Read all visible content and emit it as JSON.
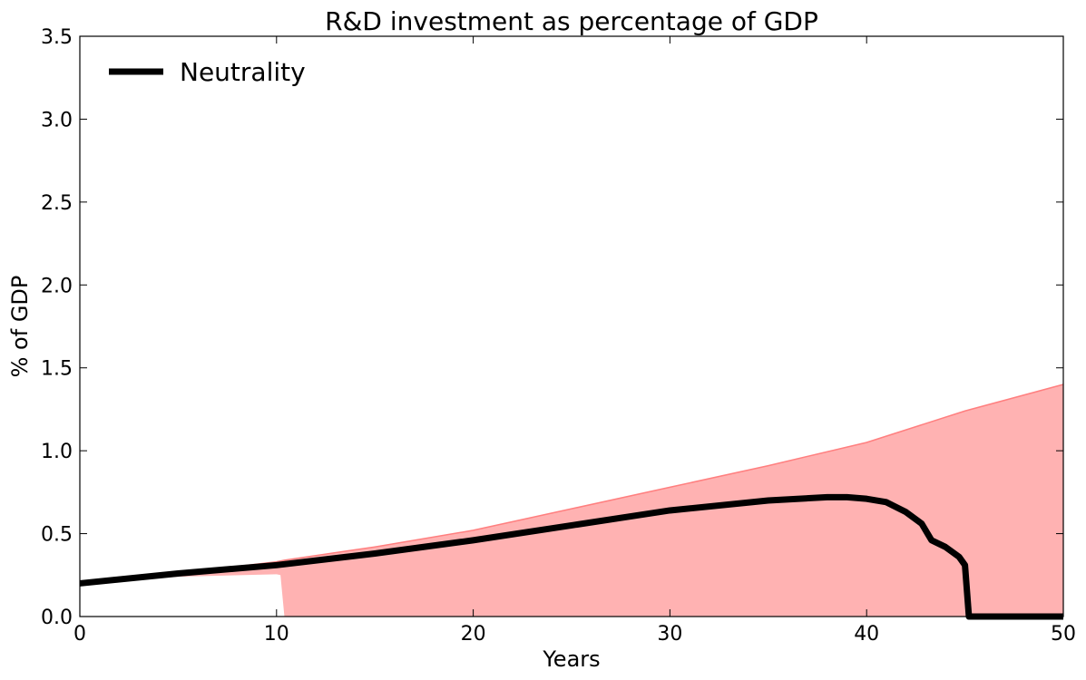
{
  "chart_data": {
    "type": "line",
    "title": "R&D investment as percentage of  GDP",
    "xlabel": "Years",
    "ylabel": "% of GDP",
    "xlim": [
      0,
      50
    ],
    "ylim": [
      0,
      3.5
    ],
    "xticks": [
      0,
      10,
      20,
      30,
      40,
      50
    ],
    "yticks": [
      0.0,
      0.5,
      1.0,
      1.5,
      2.0,
      2.5,
      3.0,
      3.5
    ],
    "xtick_labels": [
      "0",
      "10",
      "20",
      "30",
      "40",
      "50"
    ],
    "ytick_labels": [
      "0.0",
      "0.5",
      "1.0",
      "1.5",
      "2.0",
      "2.5",
      "3.0",
      "3.5"
    ],
    "grid": false,
    "legend": {
      "position": "top-left",
      "entries": [
        "Neutrality"
      ]
    },
    "series": [
      {
        "name": "Neutrality",
        "color": "#000000",
        "x": [
          0,
          5,
          10,
          15,
          20,
          25,
          30,
          35,
          38,
          39,
          40,
          41,
          42,
          42.8,
          43.3,
          44,
          44.7,
          45,
          45.2,
          46,
          48,
          50
        ],
        "y": [
          0.2,
          0.26,
          0.31,
          0.38,
          0.46,
          0.55,
          0.64,
          0.7,
          0.72,
          0.72,
          0.71,
          0.69,
          0.63,
          0.56,
          0.46,
          0.42,
          0.36,
          0.31,
          0.0,
          0.0,
          0.0,
          0.0
        ]
      }
    ],
    "band": {
      "color": "#ff7f7f",
      "x": [
        0,
        5,
        10,
        10.2,
        10.4,
        15,
        20,
        25,
        30,
        35,
        40,
        45,
        50
      ],
      "upper": [
        0.2,
        0.26,
        0.33,
        0.335,
        0.34,
        0.42,
        0.52,
        0.65,
        0.78,
        0.91,
        1.05,
        1.24,
        1.4
      ],
      "lower": [
        0.2,
        0.24,
        0.255,
        0.25,
        0.0,
        0.0,
        0.0,
        0.0,
        0.0,
        0.0,
        0.0,
        0.0,
        0.0
      ]
    }
  }
}
